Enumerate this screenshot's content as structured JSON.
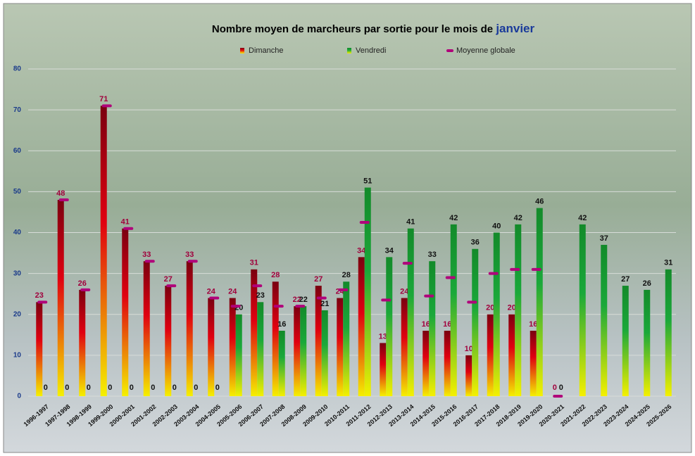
{
  "chart_data": {
    "type": "bar",
    "title": "Nombre moyen de marcheurs par sortie pour le mois de",
    "title_highlight": "janvier",
    "categories": [
      "1996-1997",
      "1997-1998",
      "1998-1999",
      "1999-2000",
      "2000-2001",
      "2001-2002",
      "2002-2003",
      "2003-2004",
      "2004-2005",
      "2005-2006",
      "2006-2007",
      "2007-2008",
      "2008-2009",
      "2009-2010",
      "2010-2011",
      "2011-2012",
      "2012-2013",
      "2013-2014",
      "2014-2015",
      "2015-2016",
      "2016-2017",
      "2017-2018",
      "2018-2019",
      "2019-2020",
      "2020-2021",
      "2021-2022",
      "2022-2023",
      "2023-2024",
      "2024-2025",
      "2025-2026"
    ],
    "series": [
      {
        "name": "Dimanche",
        "color": "#e00010",
        "label_color": "#a0003c",
        "values": [
          23,
          48,
          26,
          71,
          41,
          33,
          27,
          33,
          24,
          24,
          31,
          28,
          22,
          27,
          24,
          34,
          13,
          24,
          16,
          16,
          10,
          20,
          20,
          16,
          0,
          null,
          null,
          null,
          null,
          null
        ]
      },
      {
        "name": "Vendredi",
        "color": "#1aa83a",
        "label_color": "#111111",
        "values": [
          0,
          0,
          0,
          0,
          0,
          0,
          0,
          0,
          0,
          20,
          23,
          16,
          22,
          21,
          28,
          51,
          34,
          41,
          33,
          42,
          36,
          40,
          42,
          46,
          0,
          42,
          37,
          27,
          26,
          31
        ]
      },
      {
        "name": "Moyenne globale",
        "color": "#b0007a",
        "marker": true,
        "values": [
          23,
          48,
          26,
          71,
          41,
          33,
          27,
          33,
          24,
          22,
          27,
          22,
          22,
          24,
          26,
          42.5,
          23.5,
          32.5,
          24.5,
          29,
          23,
          30,
          31,
          31,
          0,
          null,
          null,
          null,
          null,
          null
        ]
      }
    ],
    "ylim": [
      0,
      80
    ],
    "yticks": [
      0,
      10,
      20,
      30,
      40,
      50,
      60,
      70,
      80
    ],
    "grid": true
  }
}
